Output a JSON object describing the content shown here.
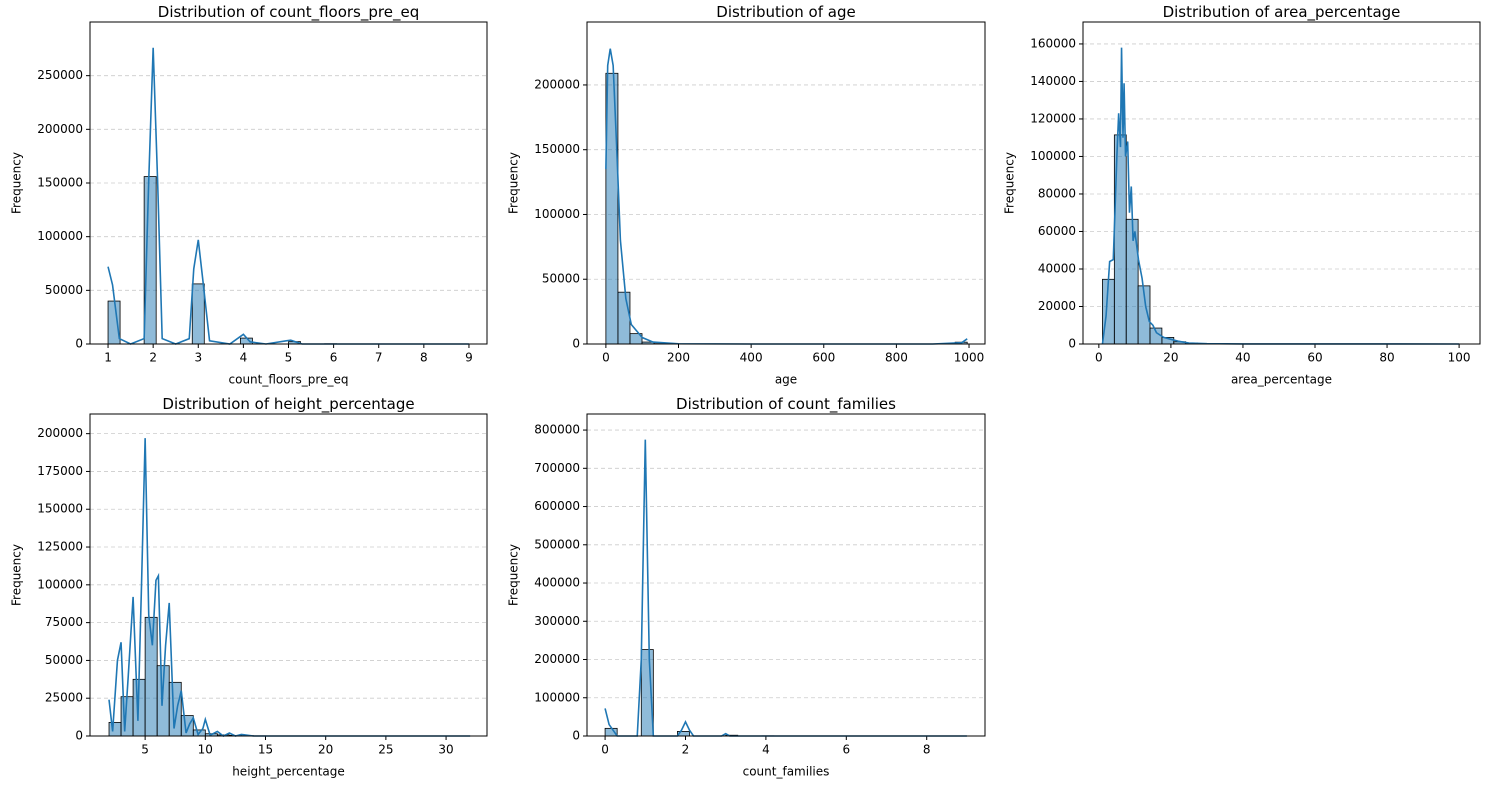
{
  "chart_data": [
    {
      "type": "histogram",
      "title": "Distribution of count_floors_pre_eq",
      "xlabel": "count_floors_pre_eq",
      "ylabel": "Frequency",
      "color": "#1f77b4",
      "grid": true,
      "bins": [
        1,
        1.2667,
        1.5333,
        1.8,
        2.0667,
        2.3333,
        2.6,
        2.8667,
        3.1333,
        3.4,
        3.6667,
        3.9333,
        4.2,
        4.4667,
        4.7333,
        5,
        5.2667,
        5.5333,
        5.8,
        6.0667,
        6.3333,
        6.6,
        6.8667,
        7.1333,
        7.4,
        7.6667,
        7.9333,
        8.2,
        8.4667,
        8.7333,
        9
      ],
      "values": [
        40000,
        0,
        0,
        156000,
        0,
        0,
        0,
        56000,
        0,
        0,
        0,
        5500,
        0,
        0,
        0,
        2200,
        0,
        0,
        200,
        0,
        0,
        0,
        100,
        0,
        0,
        0,
        50,
        0,
        0,
        20
      ],
      "kde": {
        "x": [
          1,
          1.1,
          1.25,
          1.5,
          1.8,
          1.9,
          2,
          2.1,
          2.2,
          2.5,
          2.8,
          2.9,
          3,
          3.1,
          3.25,
          3.7,
          3.9,
          4,
          4.15,
          4.5,
          4.95,
          5.05,
          5.3,
          9
        ],
        "values": [
          72000,
          55000,
          5000,
          0,
          5000,
          150000,
          276000,
          150000,
          5000,
          0,
          5000,
          70000,
          97000,
          60000,
          3000,
          0,
          6000,
          9000,
          2000,
          0,
          3000,
          3500,
          0,
          0
        ]
      },
      "xlim": [
        0.6,
        9.4
      ],
      "xticks": [
        1,
        2,
        3,
        4,
        5,
        6,
        7,
        8,
        9
      ],
      "ylim": [
        0,
        300000
      ],
      "yticks": [
        0,
        50000,
        100000,
        150000,
        200000,
        250000
      ]
    },
    {
      "type": "histogram",
      "title": "Distribution of age",
      "xlabel": "age",
      "ylabel": "Frequency",
      "color": "#1f77b4",
      "grid": true,
      "bins": [
        0,
        33.17,
        66.33,
        99.5,
        132.67,
        165.83,
        199,
        232.17,
        265.33,
        298.5,
        331.67,
        364.83,
        398,
        431.17,
        464.33,
        497.5,
        530.67,
        563.83,
        597,
        630.17,
        663.33,
        696.5,
        729.67,
        762.83,
        796,
        829.17,
        862.33,
        895.5,
        928.67,
        961.83,
        995
      ],
      "values": [
        209000,
        40000,
        8000,
        1500,
        300,
        100,
        50,
        0,
        0,
        0,
        0,
        0,
        0,
        0,
        0,
        0,
        0,
        0,
        0,
        0,
        0,
        0,
        0,
        0,
        0,
        0,
        0,
        0,
        0,
        1400
      ],
      "kde": {
        "x": [
          0,
          5,
          12,
          20,
          30,
          40,
          55,
          70,
          85,
          100,
          130,
          200,
          400,
          900,
          980,
          995
        ],
        "values": [
          135000,
          215000,
          228000,
          215000,
          150000,
          80000,
          35000,
          15000,
          10000,
          5000,
          1500,
          200,
          0,
          0,
          1000,
          4000
        ]
      },
      "xlim": [
        -52,
        1044
      ],
      "xticks": [
        0,
        200,
        400,
        600,
        800,
        1000
      ],
      "ylim": [
        0,
        248600
      ],
      "yticks": [
        0,
        50000,
        100000,
        150000,
        200000
      ]
    },
    {
      "type": "histogram",
      "title": "Distribution of area_percentage",
      "xlabel": "area_percentage",
      "ylabel": "Frequency",
      "color": "#1f77b4",
      "grid": true,
      "bins": [
        1,
        4.3,
        7.6,
        10.9,
        14.2,
        17.5,
        20.8,
        24.1,
        27.4,
        30.7,
        34,
        37.3,
        40.6,
        43.9,
        47.2,
        50.5,
        53.8,
        57.1,
        60.4,
        63.7,
        67,
        70.3,
        73.6,
        76.9,
        80.2,
        83.5,
        86.8,
        90.1,
        93.4,
        96.7,
        100
      ],
      "values": [
        34500,
        111500,
        66500,
        31000,
        8500,
        3500,
        1200,
        500,
        200,
        100,
        50,
        30,
        20,
        10,
        5,
        0,
        0,
        0,
        0,
        0,
        0,
        0,
        0,
        0,
        0,
        0,
        0,
        0,
        0,
        10
      ],
      "kde": {
        "x": [
          1,
          2,
          3,
          4,
          4.5,
          5,
          5.5,
          6,
          6.3,
          6.7,
          7,
          7.4,
          8,
          8.5,
          9,
          9.5,
          10,
          11,
          12,
          13,
          14,
          15,
          16,
          18,
          20,
          22,
          25,
          30,
          40,
          100
        ],
        "values": [
          0,
          15000,
          44000,
          45000,
          72000,
          100000,
          123000,
          105000,
          158000,
          110000,
          139000,
          100000,
          108000,
          70000,
          84000,
          55000,
          60000,
          45000,
          35000,
          20000,
          12000,
          10000,
          6000,
          3500,
          2500,
          1500,
          500,
          200,
          50,
          0
        ]
      },
      "xlim": [
        -4.4,
        105.8
      ],
      "xticks": [
        0,
        20,
        40,
        60,
        80,
        100
      ],
      "ylim": [
        0,
        171700
      ],
      "yticks": [
        0,
        20000,
        40000,
        60000,
        80000,
        100000,
        120000,
        140000,
        160000
      ]
    },
    {
      "type": "histogram",
      "title": "Distribution of height_percentage",
      "xlabel": "height_percentage",
      "ylabel": "Frequency",
      "color": "#1f77b4",
      "grid": true,
      "bins": [
        2,
        3,
        4,
        5,
        6,
        7,
        8,
        9,
        10,
        11,
        12,
        13,
        14,
        15,
        16,
        17,
        18,
        19,
        20,
        21,
        22,
        23,
        24,
        25,
        26,
        27,
        28,
        29,
        30,
        31,
        32
      ],
      "values": [
        9000,
        26000,
        37500,
        78500,
        46500,
        35500,
        13500,
        4000,
        1500,
        700,
        400,
        200,
        100,
        50,
        30,
        20,
        10,
        5,
        0,
        0,
        0,
        0,
        0,
        0,
        0,
        0,
        0,
        0,
        0,
        10
      ],
      "kde": {
        "x": [
          2,
          2.3,
          2.7,
          3,
          3.3,
          3.6,
          4,
          4.4,
          4.7,
          5,
          5.3,
          5.6,
          5.9,
          6.1,
          6.4,
          6.7,
          7,
          7.4,
          7.7,
          8,
          8.4,
          8.7,
          9,
          9.4,
          9.8,
          10,
          10.4,
          11,
          11.5,
          12,
          12.5,
          13,
          14,
          32
        ],
        "values": [
          24000,
          3000,
          50000,
          62000,
          3000,
          40000,
          92000,
          10000,
          100000,
          197000,
          80000,
          60000,
          103000,
          106000,
          20000,
          60000,
          88000,
          5000,
          20000,
          30000,
          2000,
          8000,
          12000,
          1000,
          5000,
          11000,
          500,
          3000,
          0,
          2000,
          0,
          1000,
          0,
          0
        ]
      },
      "xlim": [
        0.42,
        33.4
      ],
      "xticks": [
        5,
        10,
        15,
        20,
        25,
        30
      ],
      "ylim": [
        0,
        213000
      ],
      "yticks": [
        0,
        25000,
        50000,
        75000,
        100000,
        125000,
        150000,
        175000,
        200000
      ]
    },
    {
      "type": "histogram",
      "title": "Distribution of count_families",
      "xlabel": "count_families",
      "ylabel": "Frequency",
      "color": "#1f77b4",
      "grid": true,
      "bins": [
        0,
        0.3,
        0.6,
        0.9,
        1.2,
        1.5,
        1.8,
        2.1,
        2.4,
        2.7,
        3,
        3.3,
        3.6,
        3.9,
        4.2,
        4.5,
        4.8,
        5.1,
        5.4,
        5.7,
        6,
        6.3,
        6.6,
        6.9,
        7.2,
        7.5,
        7.8,
        8.1,
        8.4,
        8.7,
        9
      ],
      "values": [
        20000,
        0,
        0,
        226000,
        0,
        0,
        12000,
        0,
        0,
        0,
        2000,
        0,
        0,
        400,
        0,
        0,
        100,
        0,
        0,
        0,
        50,
        0,
        0,
        20,
        0,
        0,
        10,
        0,
        0,
        10
      ],
      "kde": {
        "x": [
          0,
          0.1,
          0.3,
          0.8,
          0.9,
          1,
          1.1,
          1.2,
          1.8,
          1.9,
          2,
          2.1,
          2.2,
          2.9,
          3,
          3.1,
          9
        ],
        "values": [
          72000,
          30000,
          0,
          0,
          200000,
          775000,
          200000,
          0,
          0,
          15000,
          37000,
          15000,
          0,
          0,
          6000,
          0,
          0
        ]
      },
      "xlim": [
        -0.45,
        9.45
      ],
      "xticks": [
        0,
        2,
        4,
        6,
        8
      ],
      "ylim": [
        0,
        842000
      ],
      "yticks": [
        0,
        100000,
        200000,
        300000,
        400000,
        500000,
        600000,
        700000,
        800000
      ]
    }
  ]
}
